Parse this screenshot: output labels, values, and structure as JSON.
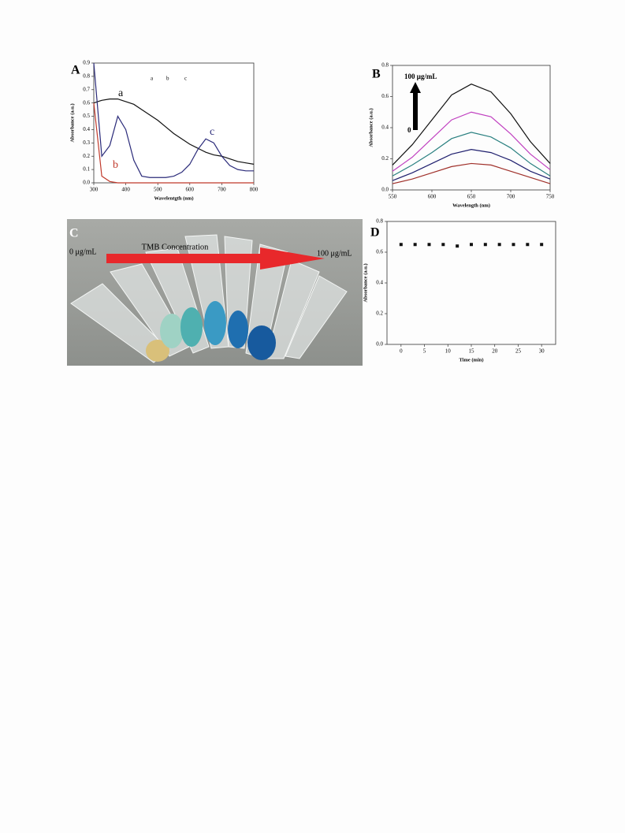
{
  "chart_data": [
    {
      "type": "line",
      "label": "A",
      "xlabel": "Wavelentgth (nm)",
      "ylabel": "Absorbance (a.u.)",
      "x": [
        300,
        325,
        350,
        375,
        400,
        425,
        450,
        475,
        500,
        525,
        550,
        575,
        600,
        625,
        650,
        675,
        700,
        725,
        750,
        775,
        800
      ],
      "series": [
        {
          "color": "#111111",
          "values": [
            0.6,
            0.62,
            0.63,
            0.63,
            0.61,
            0.59,
            0.55,
            0.51,
            0.47,
            0.42,
            0.37,
            0.33,
            0.29,
            0.26,
            0.23,
            0.21,
            0.2,
            0.18,
            0.16,
            0.15,
            0.14
          ]
        },
        {
          "color": "#c0392b",
          "values": [
            0.6,
            0.05,
            0.01,
            0,
            0,
            0,
            0,
            0,
            0,
            0,
            0,
            0,
            0,
            0,
            0,
            0,
            0,
            0,
            0,
            0,
            0
          ]
        },
        {
          "color": "#2b2b7a",
          "values": [
            0.9,
            0.2,
            0.28,
            0.5,
            0.4,
            0.17,
            0.05,
            0.04,
            0.04,
            0.04,
            0.05,
            0.08,
            0.14,
            0.25,
            0.33,
            0.3,
            0.2,
            0.13,
            0.1,
            0.09,
            0.09
          ]
        }
      ],
      "annotations": [
        "a",
        "b",
        "c"
      ],
      "inset_labels": [
        "a",
        "b",
        "c"
      ],
      "xlim": [
        300,
        800
      ],
      "xticks": [
        300,
        400,
        500,
        600,
        700,
        800
      ],
      "ylim": [
        0,
        0.9
      ],
      "yticks": [
        {
          "value": 0,
          "label": "0.0"
        },
        0.1,
        0.2,
        0.3,
        0.4,
        0.5,
        0.6,
        0.7,
        0.8,
        0.9
      ]
    },
    {
      "type": "line",
      "label": "B",
      "xlabel": "Wavelength (nm)",
      "ylabel": "Absorbance (a.u.)",
      "x": [
        550,
        575,
        600,
        625,
        650,
        675,
        700,
        725,
        750
      ],
      "series": [
        {
          "color": "#a0302a",
          "values": [
            0.04,
            0.07,
            0.11,
            0.15,
            0.17,
            0.16,
            0.12,
            0.08,
            0.04
          ]
        },
        {
          "color": "#1f1f6e",
          "values": [
            0.06,
            0.11,
            0.17,
            0.23,
            0.26,
            0.24,
            0.19,
            0.12,
            0.07
          ]
        },
        {
          "color": "#2a8080",
          "values": [
            0.09,
            0.16,
            0.24,
            0.33,
            0.37,
            0.34,
            0.27,
            0.17,
            0.09
          ]
        },
        {
          "color": "#c040c0",
          "values": [
            0.12,
            0.21,
            0.33,
            0.45,
            0.5,
            0.47,
            0.36,
            0.23,
            0.13
          ]
        },
        {
          "color": "#111111",
          "values": [
            0.16,
            0.29,
            0.45,
            0.61,
            0.68,
            0.63,
            0.49,
            0.31,
            0.17
          ]
        }
      ],
      "annotations": [
        "100 μg/mL",
        "0"
      ],
      "xlim": [
        550,
        750
      ],
      "xticks": [
        550,
        600,
        650,
        700,
        750
      ],
      "ylim": [
        0,
        0.8
      ],
      "yticks": [
        {
          "value": 0,
          "label": "0.0"
        },
        0.2,
        0.4,
        0.6,
        0.8
      ]
    },
    {
      "type": "scatter",
      "label": "D",
      "xlabel": "Time (min)",
      "ylabel": "Absorbance (a.u.)",
      "x": [
        0,
        3,
        6,
        9,
        12,
        15,
        18,
        21,
        24,
        27,
        30
      ],
      "series": [
        {
          "color": "#111111",
          "values": [
            0.65,
            0.65,
            0.65,
            0.65,
            0.64,
            0.65,
            0.65,
            0.65,
            0.65,
            0.65,
            0.65
          ]
        }
      ],
      "xlim": [
        -3,
        33
      ],
      "xticks": [
        0,
        5,
        10,
        15,
        20,
        25,
        30
      ],
      "ylim": [
        0,
        0.8
      ],
      "yticks": [
        {
          "value": 0,
          "label": "0.0"
        },
        0.2,
        0.4,
        0.6,
        0.8
      ]
    }
  ],
  "photo": {
    "label": "C",
    "start": "0 μg/mL",
    "arrow": "TMB Concentration",
    "end": "100 μg/mL"
  }
}
